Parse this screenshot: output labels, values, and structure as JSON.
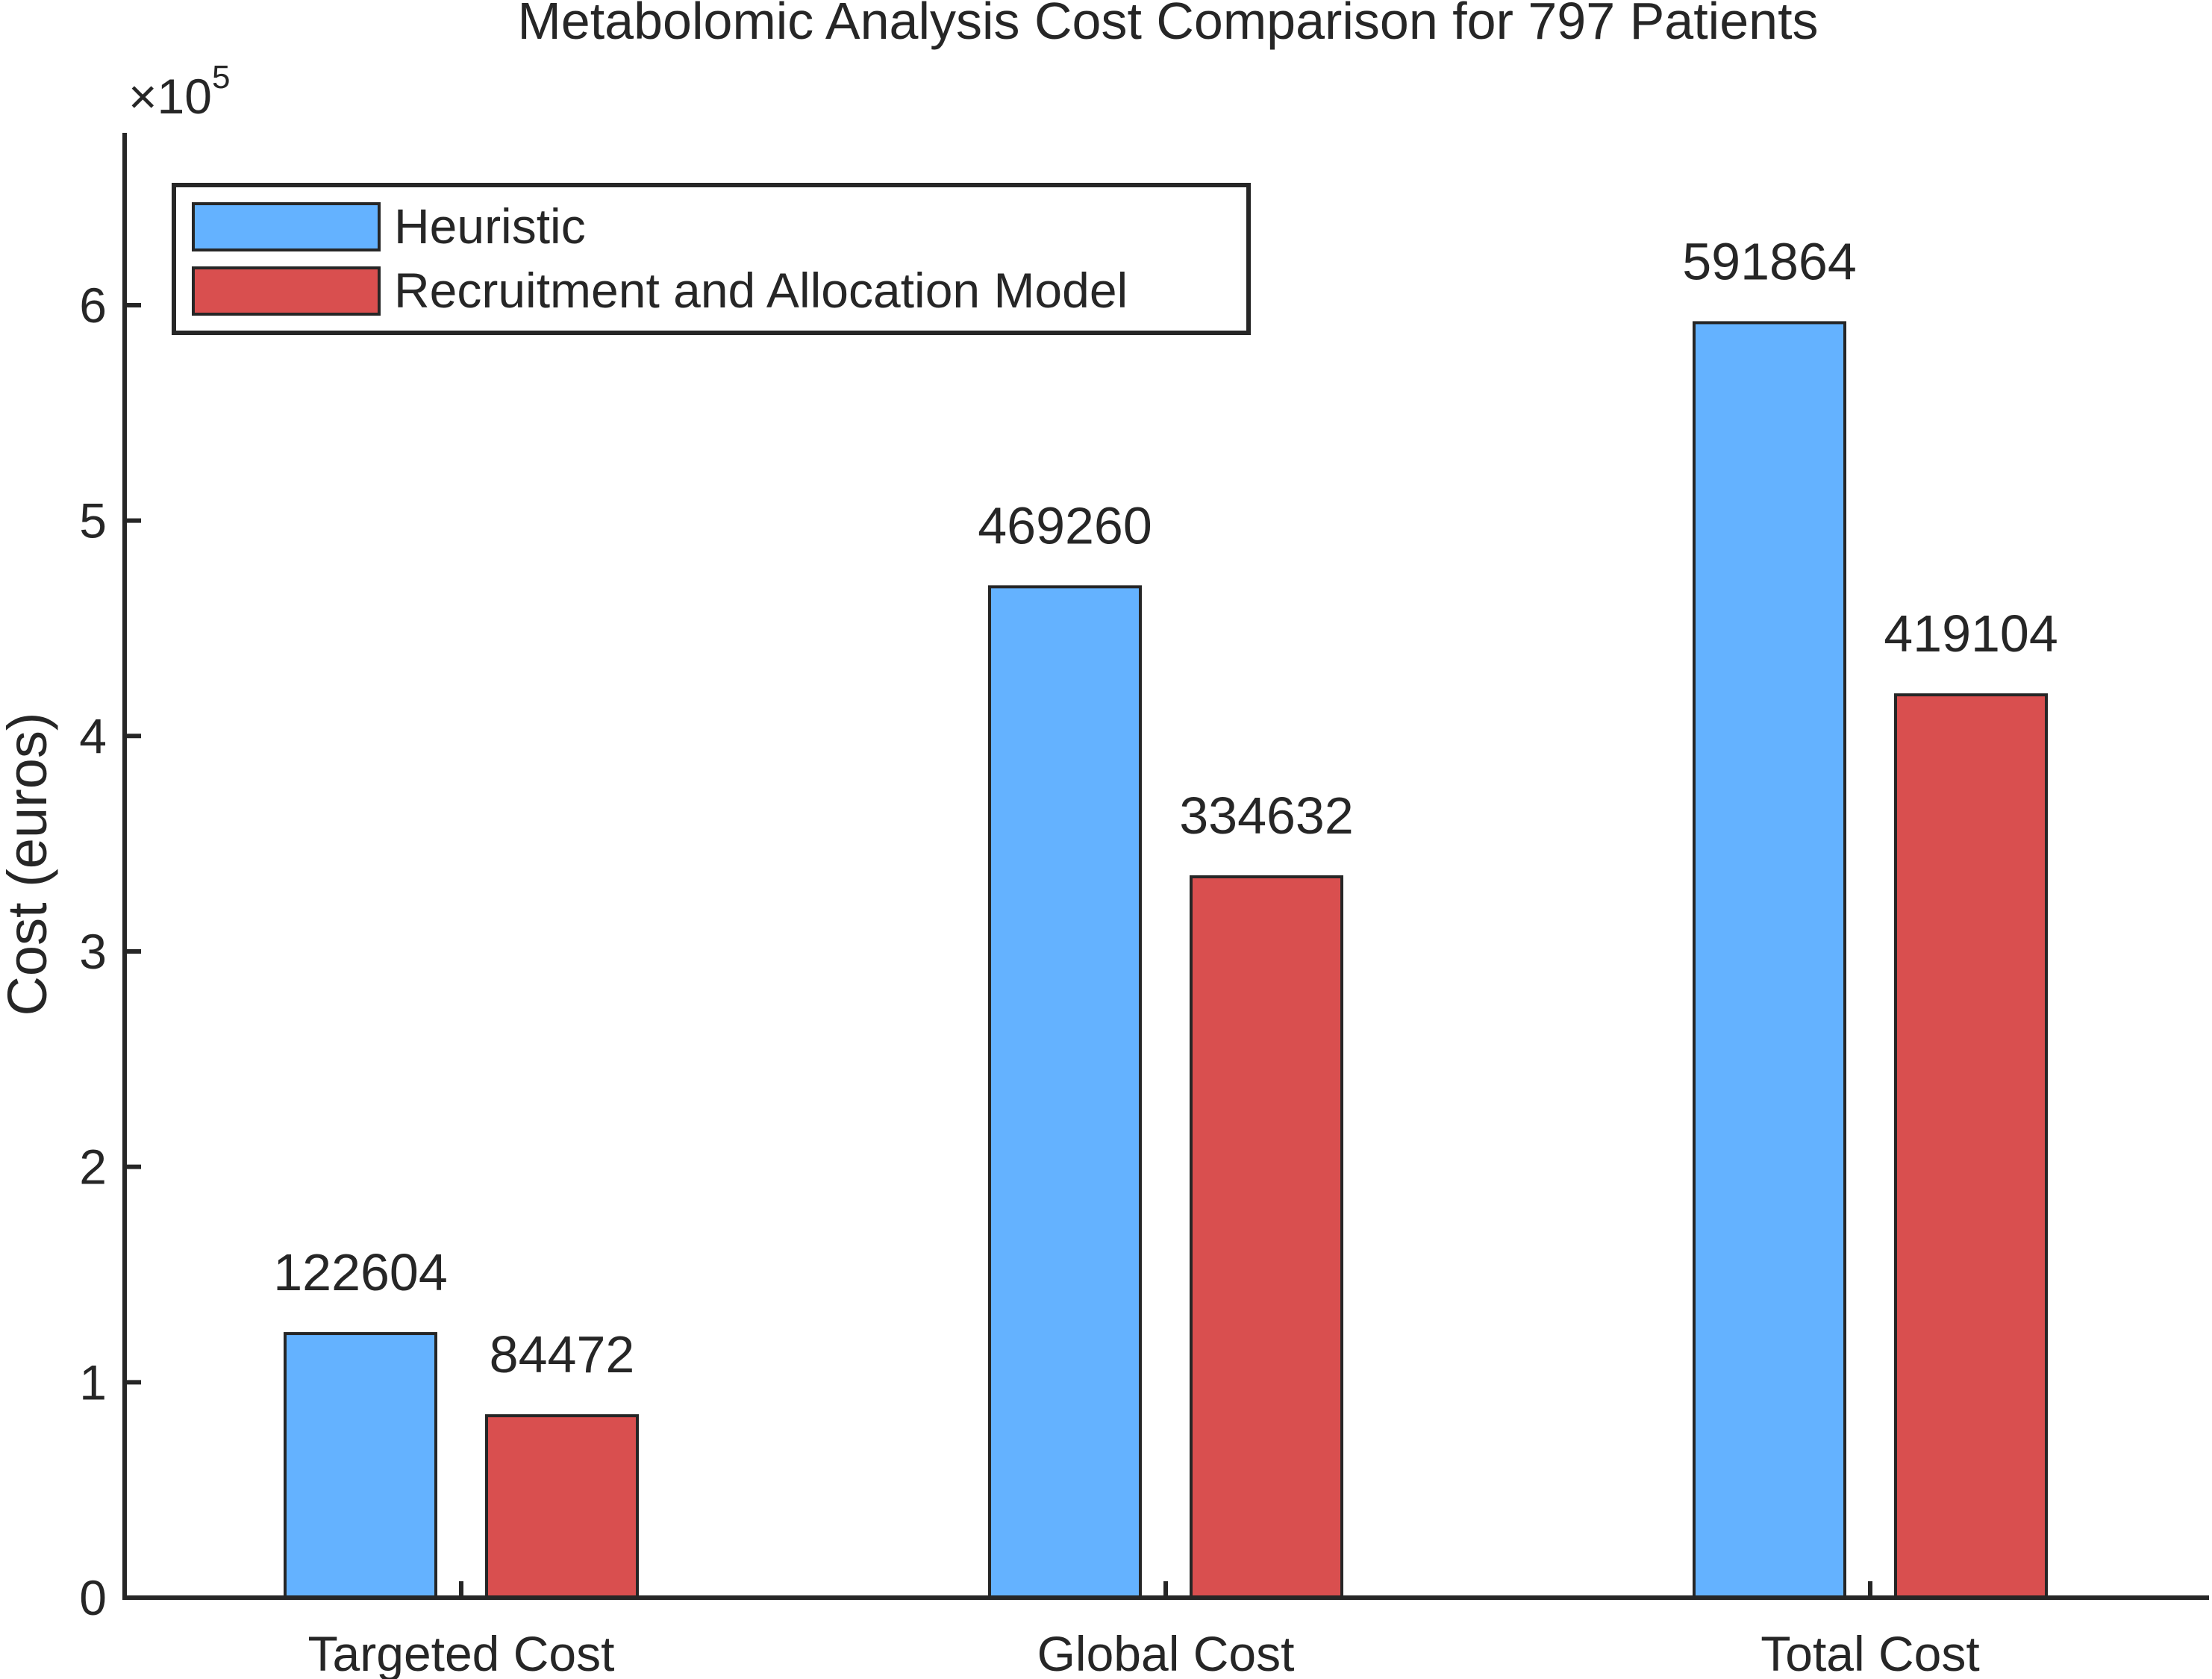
{
  "chart_data": {
    "type": "bar",
    "title": "Metabolomic Analysis Cost Comparison for 797 Patients",
    "xlabel": "",
    "ylabel": "Cost (euros)",
    "y_multiplier": {
      "base": "×10",
      "exponent": "5"
    },
    "ylim": [
      0,
      6.8
    ],
    "yticks": [
      0,
      1,
      2,
      3,
      4,
      5,
      6
    ],
    "ytick_labels": [
      "0",
      "1",
      "2",
      "3",
      "4",
      "5",
      "6"
    ],
    "categories": [
      "Targeted Cost",
      "Global Cost",
      "Total Cost"
    ],
    "series": [
      {
        "name": "Heuristic",
        "color": "#64b2ff",
        "values": [
          1.22604,
          4.6926,
          5.91864
        ],
        "labels": [
          "122604",
          "469260",
          "591864"
        ]
      },
      {
        "name": "Recruitment and Allocation Model",
        "color": "#d94f4f",
        "values": [
          0.84472,
          3.34632,
          4.19104
        ],
        "labels": [
          "84472",
          "334632",
          "419104"
        ]
      }
    ],
    "legend_position": "top-left",
    "grid": false,
    "colors": {
      "axis": "#262626",
      "bar_edge": "#262626",
      "text": "#262626"
    }
  }
}
